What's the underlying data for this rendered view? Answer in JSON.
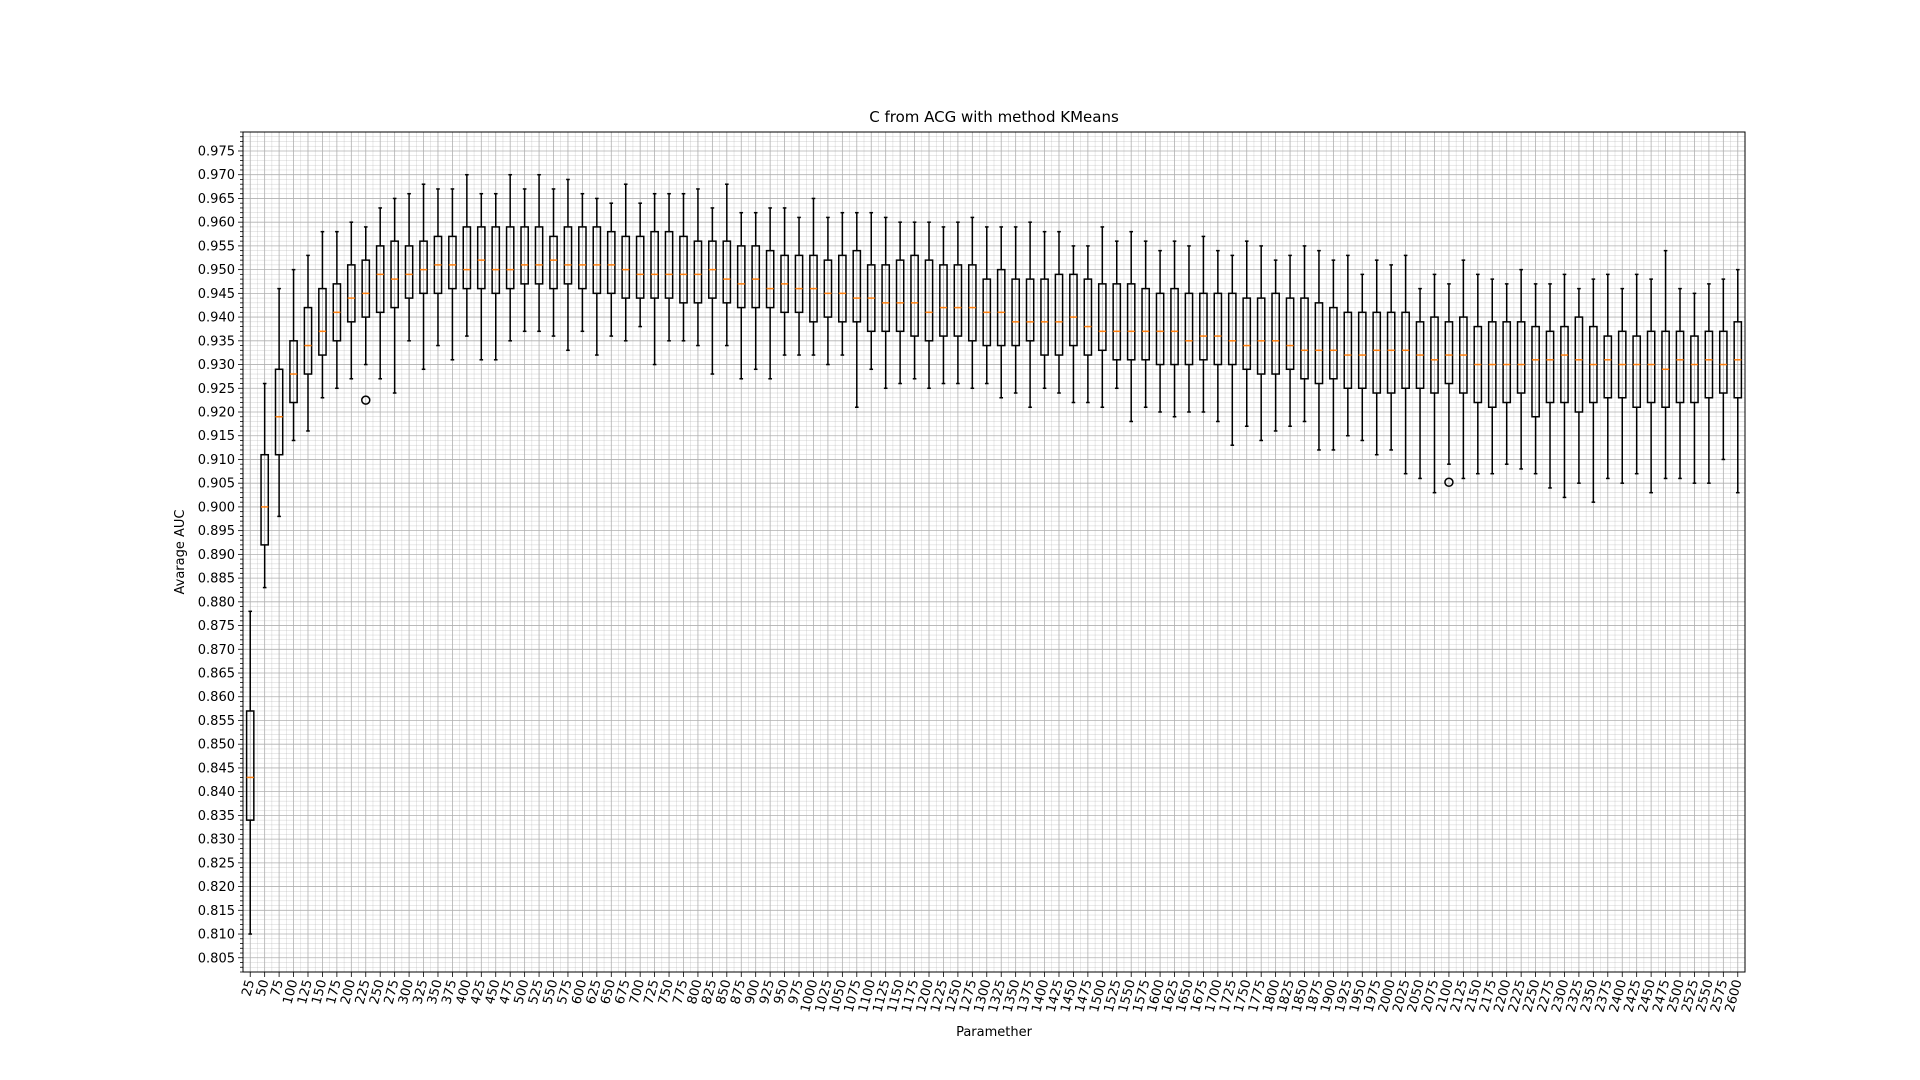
{
  "chart_data": {
    "type": "boxplot",
    "title": "C from ACG with method KMeans",
    "xlabel": "Paramether",
    "ylabel": "Avarage AUC",
    "ylim": [
      0.802,
      0.979
    ],
    "grid": "on (major and minor)",
    "y_ticks": [
      "0.805",
      "0.810",
      "0.815",
      "0.820",
      "0.825",
      "0.830",
      "0.835",
      "0.840",
      "0.845",
      "0.850",
      "0.855",
      "0.860",
      "0.865",
      "0.870",
      "0.875",
      "0.880",
      "0.885",
      "0.890",
      "0.895",
      "0.900",
      "0.905",
      "0.910",
      "0.915",
      "0.920",
      "0.925",
      "0.930",
      "0.935",
      "0.940",
      "0.945",
      "0.950",
      "0.955",
      "0.960",
      "0.965",
      "0.970",
      "0.975"
    ],
    "colors": {
      "box": "#000000",
      "median": "#ff7f0e",
      "grid": "#b0b0b0"
    },
    "boxes": [
      {
        "label": "25",
        "whislo": 0.81,
        "q1": 0.834,
        "med": 0.843,
        "q3": 0.857,
        "whishi": 0.878
      },
      {
        "label": "50",
        "whislo": 0.883,
        "q1": 0.892,
        "med": 0.9,
        "q3": 0.911,
        "whishi": 0.926
      },
      {
        "label": "75",
        "whislo": 0.898,
        "q1": 0.911,
        "med": 0.919,
        "q3": 0.929,
        "whishi": 0.946
      },
      {
        "label": "100",
        "whislo": 0.914,
        "q1": 0.922,
        "med": 0.928,
        "q3": 0.935,
        "whishi": 0.95
      },
      {
        "label": "125",
        "whislo": 0.916,
        "q1": 0.928,
        "med": 0.934,
        "q3": 0.942,
        "whishi": 0.953
      },
      {
        "label": "150",
        "whislo": 0.923,
        "q1": 0.932,
        "med": 0.937,
        "q3": 0.946,
        "whishi": 0.958
      },
      {
        "label": "175",
        "whislo": 0.925,
        "q1": 0.935,
        "med": 0.941,
        "q3": 0.947,
        "whishi": 0.958
      },
      {
        "label": "200",
        "whislo": 0.927,
        "q1": 0.939,
        "med": 0.944,
        "q3": 0.951,
        "whishi": 0.96
      },
      {
        "label": "225",
        "whislo": 0.93,
        "q1": 0.94,
        "med": 0.945,
        "q3": 0.952,
        "whishi": 0.959,
        "fliers": [
          0.9225
        ]
      },
      {
        "label": "250",
        "whislo": 0.927,
        "q1": 0.941,
        "med": 0.949,
        "q3": 0.955,
        "whishi": 0.963
      },
      {
        "label": "275",
        "whislo": 0.924,
        "q1": 0.942,
        "med": 0.948,
        "q3": 0.956,
        "whishi": 0.965
      },
      {
        "label": "300",
        "whislo": 0.935,
        "q1": 0.944,
        "med": 0.949,
        "q3": 0.955,
        "whishi": 0.966
      },
      {
        "label": "325",
        "whislo": 0.929,
        "q1": 0.945,
        "med": 0.95,
        "q3": 0.956,
        "whishi": 0.968
      },
      {
        "label": "350",
        "whislo": 0.934,
        "q1": 0.945,
        "med": 0.951,
        "q3": 0.957,
        "whishi": 0.967
      },
      {
        "label": "375",
        "whislo": 0.931,
        "q1": 0.946,
        "med": 0.951,
        "q3": 0.957,
        "whishi": 0.967
      },
      {
        "label": "400",
        "whislo": 0.936,
        "q1": 0.946,
        "med": 0.95,
        "q3": 0.959,
        "whishi": 0.97
      },
      {
        "label": "425",
        "whislo": 0.931,
        "q1": 0.946,
        "med": 0.952,
        "q3": 0.959,
        "whishi": 0.966
      },
      {
        "label": "450",
        "whislo": 0.931,
        "q1": 0.945,
        "med": 0.95,
        "q3": 0.959,
        "whishi": 0.966
      },
      {
        "label": "475",
        "whislo": 0.935,
        "q1": 0.946,
        "med": 0.95,
        "q3": 0.959,
        "whishi": 0.97
      },
      {
        "label": "500",
        "whislo": 0.937,
        "q1": 0.947,
        "med": 0.951,
        "q3": 0.959,
        "whishi": 0.967
      },
      {
        "label": "525",
        "whislo": 0.937,
        "q1": 0.947,
        "med": 0.951,
        "q3": 0.959,
        "whishi": 0.97
      },
      {
        "label": "550",
        "whislo": 0.936,
        "q1": 0.946,
        "med": 0.952,
        "q3": 0.957,
        "whishi": 0.967
      },
      {
        "label": "575",
        "whislo": 0.933,
        "q1": 0.947,
        "med": 0.951,
        "q3": 0.959,
        "whishi": 0.969
      },
      {
        "label": "600",
        "whislo": 0.937,
        "q1": 0.946,
        "med": 0.951,
        "q3": 0.959,
        "whishi": 0.966
      },
      {
        "label": "625",
        "whislo": 0.932,
        "q1": 0.945,
        "med": 0.951,
        "q3": 0.959,
        "whishi": 0.965
      },
      {
        "label": "650",
        "whislo": 0.936,
        "q1": 0.945,
        "med": 0.951,
        "q3": 0.958,
        "whishi": 0.964
      },
      {
        "label": "675",
        "whislo": 0.935,
        "q1": 0.944,
        "med": 0.95,
        "q3": 0.957,
        "whishi": 0.968
      },
      {
        "label": "700",
        "whislo": 0.938,
        "q1": 0.944,
        "med": 0.949,
        "q3": 0.957,
        "whishi": 0.964
      },
      {
        "label": "725",
        "whislo": 0.93,
        "q1": 0.944,
        "med": 0.949,
        "q3": 0.958,
        "whishi": 0.966
      },
      {
        "label": "750",
        "whislo": 0.935,
        "q1": 0.944,
        "med": 0.949,
        "q3": 0.958,
        "whishi": 0.966
      },
      {
        "label": "775",
        "whislo": 0.935,
        "q1": 0.943,
        "med": 0.949,
        "q3": 0.957,
        "whishi": 0.966
      },
      {
        "label": "800",
        "whislo": 0.934,
        "q1": 0.943,
        "med": 0.949,
        "q3": 0.956,
        "whishi": 0.967
      },
      {
        "label": "825",
        "whislo": 0.928,
        "q1": 0.944,
        "med": 0.95,
        "q3": 0.956,
        "whishi": 0.963
      },
      {
        "label": "850",
        "whislo": 0.934,
        "q1": 0.943,
        "med": 0.948,
        "q3": 0.956,
        "whishi": 0.968
      },
      {
        "label": "875",
        "whislo": 0.927,
        "q1": 0.942,
        "med": 0.947,
        "q3": 0.955,
        "whishi": 0.962
      },
      {
        "label": "900",
        "whislo": 0.929,
        "q1": 0.942,
        "med": 0.948,
        "q3": 0.955,
        "whishi": 0.962
      },
      {
        "label": "925",
        "whislo": 0.927,
        "q1": 0.942,
        "med": 0.946,
        "q3": 0.954,
        "whishi": 0.963
      },
      {
        "label": "950",
        "whislo": 0.932,
        "q1": 0.941,
        "med": 0.947,
        "q3": 0.953,
        "whishi": 0.963
      },
      {
        "label": "975",
        "whislo": 0.932,
        "q1": 0.941,
        "med": 0.946,
        "q3": 0.953,
        "whishi": 0.961
      },
      {
        "label": "1000",
        "whislo": 0.932,
        "q1": 0.939,
        "med": 0.946,
        "q3": 0.953,
        "whishi": 0.965
      },
      {
        "label": "1025",
        "whislo": 0.93,
        "q1": 0.94,
        "med": 0.945,
        "q3": 0.952,
        "whishi": 0.961
      },
      {
        "label": "1050",
        "whislo": 0.932,
        "q1": 0.939,
        "med": 0.945,
        "q3": 0.953,
        "whishi": 0.962
      },
      {
        "label": "1075",
        "whislo": 0.921,
        "q1": 0.939,
        "med": 0.944,
        "q3": 0.954,
        "whishi": 0.962
      },
      {
        "label": "1100",
        "whislo": 0.929,
        "q1": 0.937,
        "med": 0.944,
        "q3": 0.951,
        "whishi": 0.962
      },
      {
        "label": "1125",
        "whislo": 0.925,
        "q1": 0.937,
        "med": 0.943,
        "q3": 0.951,
        "whishi": 0.961
      },
      {
        "label": "1150",
        "whislo": 0.926,
        "q1": 0.937,
        "med": 0.943,
        "q3": 0.952,
        "whishi": 0.96
      },
      {
        "label": "1175",
        "whislo": 0.927,
        "q1": 0.936,
        "med": 0.943,
        "q3": 0.953,
        "whishi": 0.96
      },
      {
        "label": "1200",
        "whislo": 0.925,
        "q1": 0.935,
        "med": 0.941,
        "q3": 0.952,
        "whishi": 0.96
      },
      {
        "label": "1225",
        "whislo": 0.926,
        "q1": 0.936,
        "med": 0.942,
        "q3": 0.951,
        "whishi": 0.959
      },
      {
        "label": "1250",
        "whislo": 0.926,
        "q1": 0.936,
        "med": 0.942,
        "q3": 0.951,
        "whishi": 0.96
      },
      {
        "label": "1275",
        "whislo": 0.925,
        "q1": 0.935,
        "med": 0.942,
        "q3": 0.951,
        "whishi": 0.961
      },
      {
        "label": "1300",
        "whislo": 0.926,
        "q1": 0.934,
        "med": 0.941,
        "q3": 0.948,
        "whishi": 0.959
      },
      {
        "label": "1325",
        "whislo": 0.923,
        "q1": 0.934,
        "med": 0.941,
        "q3": 0.95,
        "whishi": 0.959
      },
      {
        "label": "1350",
        "whislo": 0.924,
        "q1": 0.934,
        "med": 0.939,
        "q3": 0.948,
        "whishi": 0.959
      },
      {
        "label": "1375",
        "whislo": 0.921,
        "q1": 0.935,
        "med": 0.939,
        "q3": 0.948,
        "whishi": 0.96
      },
      {
        "label": "1400",
        "whislo": 0.925,
        "q1": 0.932,
        "med": 0.939,
        "q3": 0.948,
        "whishi": 0.958
      },
      {
        "label": "1425",
        "whislo": 0.924,
        "q1": 0.932,
        "med": 0.939,
        "q3": 0.949,
        "whishi": 0.958
      },
      {
        "label": "1450",
        "whislo": 0.922,
        "q1": 0.934,
        "med": 0.94,
        "q3": 0.949,
        "whishi": 0.955
      },
      {
        "label": "1475",
        "whislo": 0.922,
        "q1": 0.932,
        "med": 0.938,
        "q3": 0.948,
        "whishi": 0.955
      },
      {
        "label": "1500",
        "whislo": 0.921,
        "q1": 0.933,
        "med": 0.937,
        "q3": 0.947,
        "whishi": 0.959
      },
      {
        "label": "1525",
        "whislo": 0.925,
        "q1": 0.931,
        "med": 0.937,
        "q3": 0.947,
        "whishi": 0.956
      },
      {
        "label": "1550",
        "whislo": 0.918,
        "q1": 0.931,
        "med": 0.937,
        "q3": 0.947,
        "whishi": 0.958
      },
      {
        "label": "1575",
        "whislo": 0.921,
        "q1": 0.931,
        "med": 0.937,
        "q3": 0.946,
        "whishi": 0.956
      },
      {
        "label": "1600",
        "whislo": 0.92,
        "q1": 0.93,
        "med": 0.937,
        "q3": 0.945,
        "whishi": 0.954
      },
      {
        "label": "1625",
        "whislo": 0.919,
        "q1": 0.93,
        "med": 0.937,
        "q3": 0.946,
        "whishi": 0.956
      },
      {
        "label": "1650",
        "whislo": 0.92,
        "q1": 0.93,
        "med": 0.935,
        "q3": 0.945,
        "whishi": 0.955
      },
      {
        "label": "1675",
        "whislo": 0.92,
        "q1": 0.931,
        "med": 0.936,
        "q3": 0.945,
        "whishi": 0.957
      },
      {
        "label": "1700",
        "whislo": 0.918,
        "q1": 0.93,
        "med": 0.936,
        "q3": 0.945,
        "whishi": 0.954
      },
      {
        "label": "1725",
        "whislo": 0.913,
        "q1": 0.93,
        "med": 0.935,
        "q3": 0.945,
        "whishi": 0.953
      },
      {
        "label": "1750",
        "whislo": 0.917,
        "q1": 0.929,
        "med": 0.934,
        "q3": 0.944,
        "whishi": 0.956
      },
      {
        "label": "1775",
        "whislo": 0.914,
        "q1": 0.928,
        "med": 0.935,
        "q3": 0.944,
        "whishi": 0.955
      },
      {
        "label": "1800",
        "whislo": 0.916,
        "q1": 0.928,
        "med": 0.935,
        "q3": 0.945,
        "whishi": 0.952
      },
      {
        "label": "1825",
        "whislo": 0.917,
        "q1": 0.929,
        "med": 0.934,
        "q3": 0.944,
        "whishi": 0.953
      },
      {
        "label": "1850",
        "whislo": 0.918,
        "q1": 0.927,
        "med": 0.933,
        "q3": 0.944,
        "whishi": 0.955
      },
      {
        "label": "1875",
        "whislo": 0.912,
        "q1": 0.926,
        "med": 0.933,
        "q3": 0.943,
        "whishi": 0.954
      },
      {
        "label": "1900",
        "whislo": 0.912,
        "q1": 0.927,
        "med": 0.933,
        "q3": 0.942,
        "whishi": 0.952
      },
      {
        "label": "1925",
        "whislo": 0.915,
        "q1": 0.925,
        "med": 0.932,
        "q3": 0.941,
        "whishi": 0.953
      },
      {
        "label": "1950",
        "whislo": 0.914,
        "q1": 0.925,
        "med": 0.932,
        "q3": 0.941,
        "whishi": 0.949
      },
      {
        "label": "1975",
        "whislo": 0.911,
        "q1": 0.924,
        "med": 0.933,
        "q3": 0.941,
        "whishi": 0.952
      },
      {
        "label": "2000",
        "whislo": 0.912,
        "q1": 0.924,
        "med": 0.933,
        "q3": 0.941,
        "whishi": 0.951
      },
      {
        "label": "2025",
        "whislo": 0.907,
        "q1": 0.925,
        "med": 0.933,
        "q3": 0.941,
        "whishi": 0.953
      },
      {
        "label": "2050",
        "whislo": 0.906,
        "q1": 0.925,
        "med": 0.932,
        "q3": 0.939,
        "whishi": 0.946
      },
      {
        "label": "2075",
        "whislo": 0.903,
        "q1": 0.924,
        "med": 0.931,
        "q3": 0.94,
        "whishi": 0.949
      },
      {
        "label": "2100",
        "whislo": 0.909,
        "q1": 0.926,
        "med": 0.932,
        "q3": 0.939,
        "whishi": 0.947,
        "fliers": [
          0.9052
        ]
      },
      {
        "label": "2125",
        "whislo": 0.906,
        "q1": 0.924,
        "med": 0.932,
        "q3": 0.94,
        "whishi": 0.952
      },
      {
        "label": "2150",
        "whislo": 0.907,
        "q1": 0.922,
        "med": 0.93,
        "q3": 0.938,
        "whishi": 0.949
      },
      {
        "label": "2175",
        "whislo": 0.907,
        "q1": 0.921,
        "med": 0.93,
        "q3": 0.939,
        "whishi": 0.948
      },
      {
        "label": "2200",
        "whislo": 0.909,
        "q1": 0.922,
        "med": 0.93,
        "q3": 0.939,
        "whishi": 0.947
      },
      {
        "label": "2225",
        "whislo": 0.908,
        "q1": 0.924,
        "med": 0.93,
        "q3": 0.939,
        "whishi": 0.95
      },
      {
        "label": "2250",
        "whislo": 0.907,
        "q1": 0.919,
        "med": 0.931,
        "q3": 0.938,
        "whishi": 0.947
      },
      {
        "label": "2275",
        "whislo": 0.904,
        "q1": 0.922,
        "med": 0.931,
        "q3": 0.937,
        "whishi": 0.947
      },
      {
        "label": "2300",
        "whislo": 0.902,
        "q1": 0.922,
        "med": 0.932,
        "q3": 0.938,
        "whishi": 0.949
      },
      {
        "label": "2325",
        "whislo": 0.905,
        "q1": 0.92,
        "med": 0.931,
        "q3": 0.94,
        "whishi": 0.946
      },
      {
        "label": "2350",
        "whislo": 0.901,
        "q1": 0.922,
        "med": 0.93,
        "q3": 0.938,
        "whishi": 0.948
      },
      {
        "label": "2375",
        "whislo": 0.906,
        "q1": 0.923,
        "med": 0.931,
        "q3": 0.936,
        "whishi": 0.949
      },
      {
        "label": "2400",
        "whislo": 0.905,
        "q1": 0.923,
        "med": 0.93,
        "q3": 0.937,
        "whishi": 0.946
      },
      {
        "label": "2425",
        "whislo": 0.907,
        "q1": 0.921,
        "med": 0.93,
        "q3": 0.936,
        "whishi": 0.949
      },
      {
        "label": "2450",
        "whislo": 0.903,
        "q1": 0.922,
        "med": 0.93,
        "q3": 0.937,
        "whishi": 0.948
      },
      {
        "label": "2475",
        "whislo": 0.906,
        "q1": 0.921,
        "med": 0.929,
        "q3": 0.937,
        "whishi": 0.954
      },
      {
        "label": "2500",
        "whislo": 0.906,
        "q1": 0.922,
        "med": 0.931,
        "q3": 0.937,
        "whishi": 0.946
      },
      {
        "label": "2525",
        "whislo": 0.905,
        "q1": 0.922,
        "med": 0.93,
        "q3": 0.936,
        "whishi": 0.945
      },
      {
        "label": "2550",
        "whislo": 0.905,
        "q1": 0.923,
        "med": 0.931,
        "q3": 0.937,
        "whishi": 0.947
      },
      {
        "label": "2575",
        "whislo": 0.91,
        "q1": 0.924,
        "med": 0.93,
        "q3": 0.937,
        "whishi": 0.948
      },
      {
        "label": "2600",
        "whislo": 0.903,
        "q1": 0.923,
        "med": 0.931,
        "q3": 0.939,
        "whishi": 0.95
      }
    ]
  }
}
